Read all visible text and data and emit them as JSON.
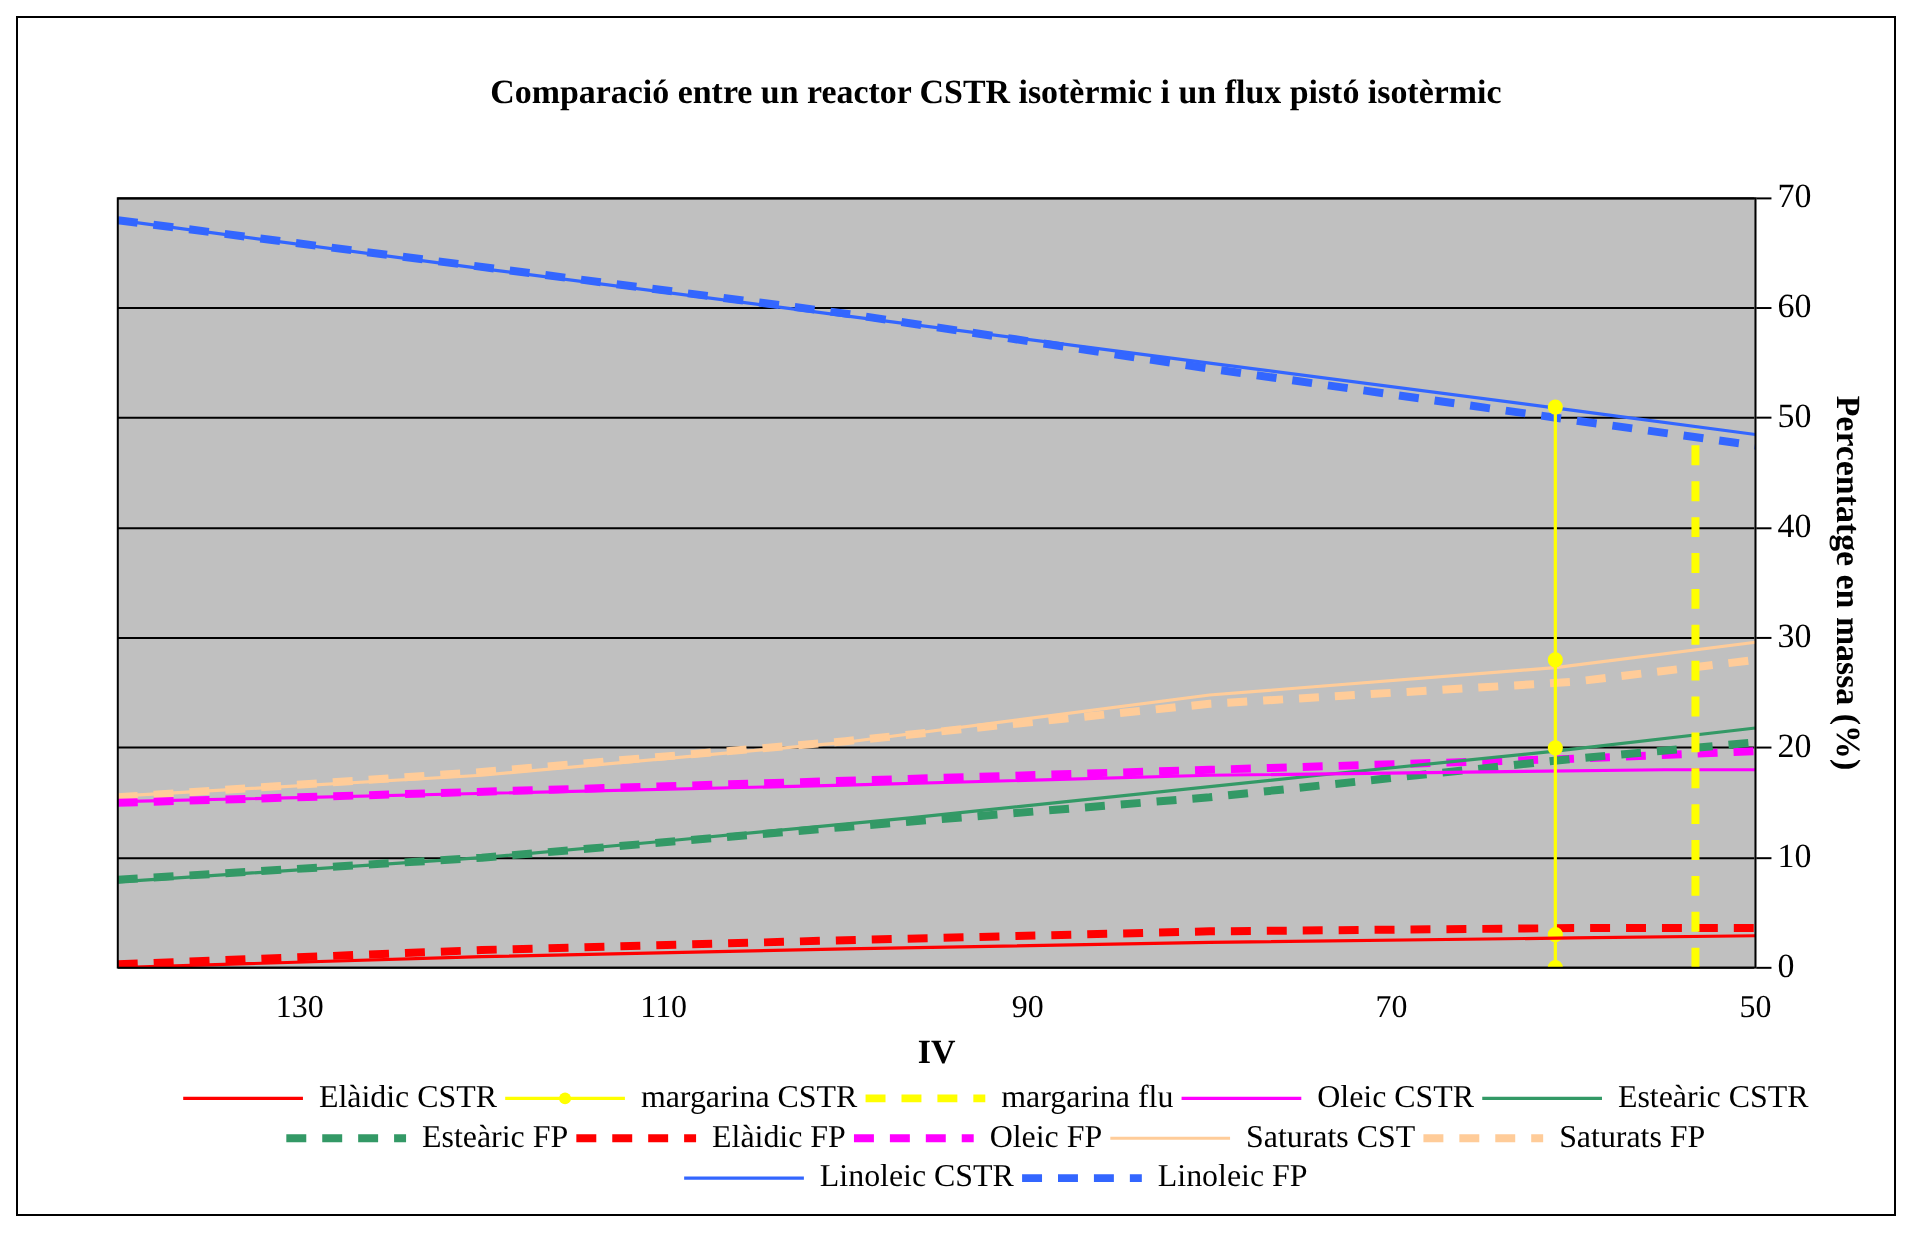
{
  "chart_data": {
    "type": "line",
    "title": "Comparació entre un reactor CSTR isotèrmic i un flux pistó isotèrmic",
    "xlabel": "IV",
    "ylabel": "Percentatge en massa (%)",
    "xlim": [
      140,
      50
    ],
    "xticks": [
      130,
      110,
      90,
      70,
      50
    ],
    "ylim": [
      0,
      70
    ],
    "yticks": [
      0,
      10,
      20,
      30,
      40,
      50,
      60,
      70
    ],
    "grid": "y",
    "legend": "bottom",
    "series": [
      {
        "name": "Elàidic CSTR",
        "color": "#ff0000",
        "line_style": "solid",
        "x": [
          140,
          120,
          100,
          80,
          60,
          50
        ],
        "values": [
          0,
          1,
          1.7,
          2.3,
          2.7,
          2.9
        ]
      },
      {
        "name": "margarina CSTR",
        "color": "#ffff00",
        "line_style": "solid",
        "marker": "circle",
        "x": [
          61,
          61,
          61,
          61,
          61
        ],
        "values": [
          0,
          3,
          20,
          28,
          51
        ]
      },
      {
        "name": "margarina flu",
        "color": "#ffff00",
        "line_style": "dashed",
        "x": [
          53.3,
          53.3
        ],
        "values": [
          0,
          49
        ]
      },
      {
        "name": "Oleic CSTR",
        "color": "#ff00ff",
        "line_style": "solid",
        "x": [
          140,
          100,
          80,
          55,
          50
        ],
        "values": [
          15.1,
          16.6,
          17.5,
          18,
          18
        ]
      },
      {
        "name": "Esteàric CSTR",
        "color": "#339966",
        "line_style": "solid",
        "x": [
          140,
          120,
          110,
          96.6,
          74,
          61,
          50
        ],
        "values": [
          7.8,
          10,
          11.5,
          13.6,
          17.5,
          19.7,
          21.8
        ]
      },
      {
        "name": "Esteàric FP",
        "color": "#339966",
        "line_style": "dashed",
        "x": [
          140,
          120,
          100,
          80,
          60,
          50
        ],
        "values": [
          8,
          10,
          12.8,
          15.5,
          19,
          20.5
        ]
      },
      {
        "name": "Elàidic FP",
        "color": "#ff0000",
        "line_style": "dashed",
        "x": [
          140,
          120,
          100,
          80,
          60,
          50
        ],
        "values": [
          0.3,
          1.6,
          2.5,
          3.3,
          3.6,
          3.6
        ]
      },
      {
        "name": "Oleic FP",
        "color": "#ff00ff",
        "line_style": "dashed",
        "x": [
          140,
          100,
          80,
          60,
          50
        ],
        "values": [
          15,
          17,
          18,
          19,
          19.7
        ]
      },
      {
        "name": "Saturats CST",
        "color": "#ffcc99",
        "line_style": "solid",
        "x": [
          140,
          120,
          100,
          80,
          61,
          50
        ],
        "values": [
          15.6,
          17.5,
          20.5,
          24.8,
          27.3,
          29.6
        ]
      },
      {
        "name": "Saturats FP",
        "color": "#ffcc99",
        "line_style": "dashed",
        "x": [
          140,
          120,
          100,
          80,
          60,
          50
        ],
        "values": [
          15.5,
          17.8,
          20.6,
          24,
          26,
          28
        ]
      },
      {
        "name": "Linoleic CSTR",
        "color": "#3366ff",
        "line_style": "solid",
        "x": [
          140,
          120,
          100,
          80,
          60,
          50
        ],
        "values": [
          68,
          63.6,
          59.3,
          55,
          50.7,
          48.5
        ]
      },
      {
        "name": "Linoleic FP",
        "color": "#3366ff",
        "line_style": "dashed",
        "x": [
          140,
          100,
          80,
          60,
          50
        ],
        "values": [
          68,
          59.5,
          54.5,
          49.8,
          47.5
        ]
      }
    ]
  }
}
